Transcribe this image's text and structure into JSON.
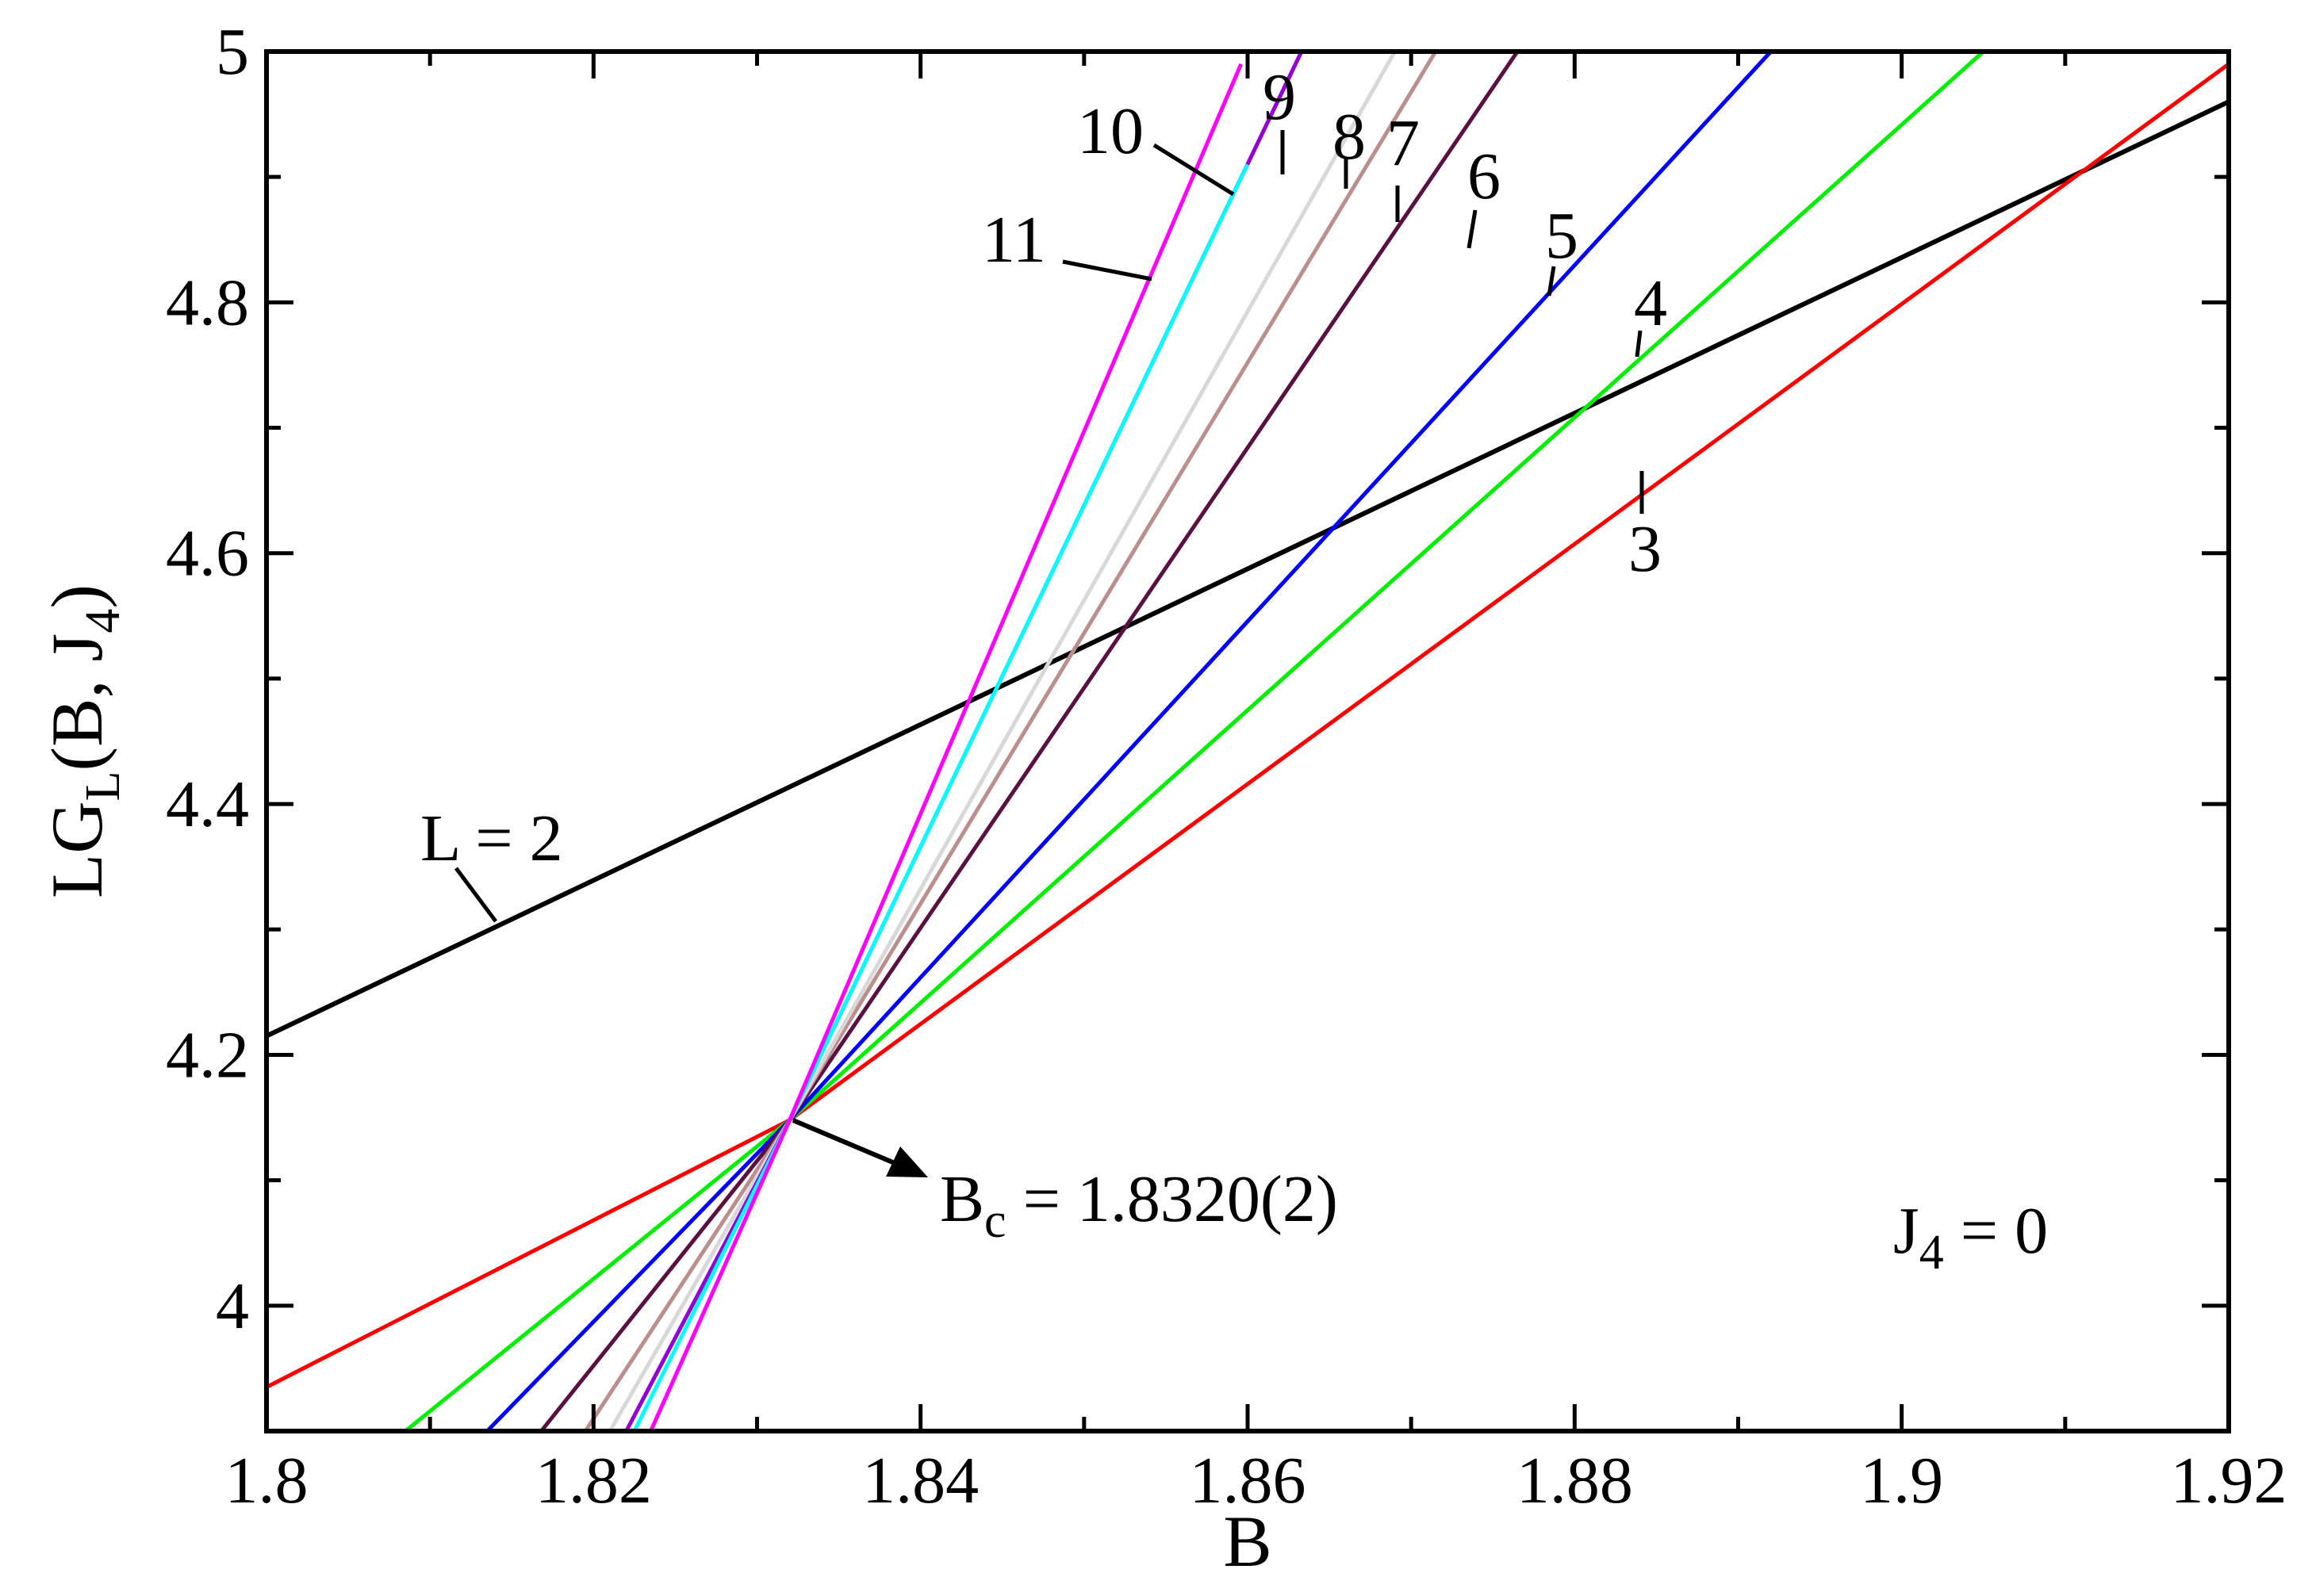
{
  "chart_data": {
    "type": "line",
    "title": "",
    "xlabel": "B",
    "ylabel": {
      "main": "LG",
      "sub": "L",
      "args": "(B, J",
      "args_sub": "4",
      "close": ")"
    },
    "xlim": [
      1.8,
      1.92
    ],
    "ylim": [
      3.9,
      5.0
    ],
    "xticks": [
      1.8,
      1.82,
      1.84,
      1.86,
      1.88,
      1.9,
      1.92
    ],
    "xtick_labels": [
      "1.8",
      "1.82",
      "1.84",
      "1.86",
      "1.88",
      "1.9",
      "1.92"
    ],
    "yticks": [
      4.0,
      4.2,
      4.4,
      4.6,
      4.8,
      5.0
    ],
    "ytick_labels": [
      "4",
      "4.2",
      "4.4",
      "4.6",
      "4.8",
      "5"
    ],
    "grid": false,
    "series": [
      {
        "name": "L = 2",
        "color": "#000000",
        "x": [
          1.8,
          1.92
        ],
        "y": [
          4.215,
          4.96
        ]
      },
      {
        "name": "3",
        "color": "#ff0000",
        "x": [
          1.8,
          1.832,
          1.92
        ],
        "y": [
          3.935,
          4.148,
          4.99
        ]
      },
      {
        "name": "4",
        "color": "#00ee00",
        "x": [
          1.8085,
          1.832,
          1.905
        ],
        "y": [
          3.9,
          4.148,
          5.0
        ]
      },
      {
        "name": "5",
        "color": "#0000ff",
        "x": [
          1.8135,
          1.832,
          1.892
        ],
        "y": [
          3.9,
          4.148,
          5.0
        ]
      },
      {
        "name": "6",
        "color": "#5a1040",
        "x": [
          1.8168,
          1.832,
          1.8765
        ],
        "y": [
          3.9,
          4.148,
          5.0
        ]
      },
      {
        "name": "7",
        "color": "#bc8f8f",
        "x": [
          1.8195,
          1.832,
          1.8715
        ],
        "y": [
          3.9,
          4.148,
          5.0
        ]
      },
      {
        "name": "8",
        "color": "#d8d8d8",
        "x": [
          1.821,
          1.832,
          1.869
        ],
        "y": [
          3.9,
          4.148,
          5.0
        ]
      },
      {
        "name": "9",
        "color": "#9400d3",
        "x": [
          1.822,
          1.832,
          1.8633
        ],
        "y": [
          3.9,
          4.148,
          5.0
        ]
      },
      {
        "name": "10",
        "color": "#00ffff",
        "x": [
          1.8225,
          1.832,
          1.86
        ],
        "y": [
          3.9,
          4.148,
          4.91
        ]
      },
      {
        "name": "11",
        "color": "#ff00ff",
        "x": [
          1.8235,
          1.832,
          1.8596
        ],
        "y": [
          3.9,
          4.148,
          4.99
        ]
      }
    ],
    "annotations": {
      "bc_main": "B",
      "bc_sub": "c",
      "bc_value": " = 1.8320(2)",
      "j4_main": "J",
      "j4_sub": "4",
      "j4_value": " = 0"
    }
  }
}
